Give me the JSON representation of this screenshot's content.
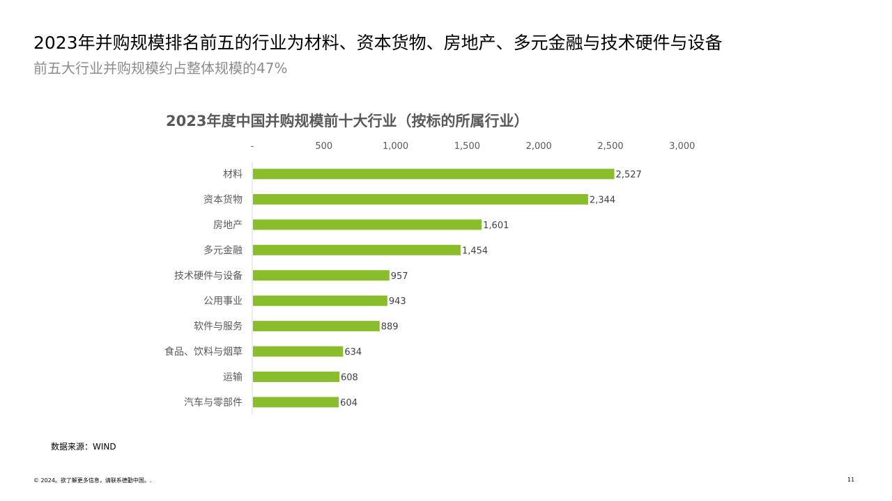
{
  "slide": {
    "headline": "2023年并购规模排名前五的行业为材料、资本货物、房地产、多元金融与技术硬件与设备",
    "subheadline": "前五大行业并购规模约占整体规模的47%",
    "source": "数据来源：WIND",
    "footer": "© 2024。欲了解更多信息，请联系德勤中国。.",
    "page_number": "11"
  },
  "colors": {
    "bar": "#8abd2c",
    "axis_text": "#595959",
    "axis_line": "#d9d9d9"
  },
  "chart_data": {
    "type": "bar",
    "orientation": "horizontal",
    "title": "2023年度中国并购规模前十大行业（按标的所属行业）",
    "xlabel": "",
    "ylabel": "",
    "xlim": [
      0,
      3000
    ],
    "x_axis_position": "top",
    "grid": false,
    "legend": "none",
    "x_ticks": [
      {
        "value": 0,
        "label": "-"
      },
      {
        "value": 500,
        "label": "500"
      },
      {
        "value": 1000,
        "label": "1,000"
      },
      {
        "value": 1500,
        "label": "1,500"
      },
      {
        "value": 2000,
        "label": "2,000"
      },
      {
        "value": 2500,
        "label": "2,500"
      },
      {
        "value": 3000,
        "label": "3,000"
      }
    ],
    "categories": [
      "材料",
      "资本货物",
      "房地产",
      "多元金融",
      "技术硬件与设备",
      "公用事业",
      "软件与服务",
      "食品、饮料与烟草",
      "运输",
      "汽车与零部件"
    ],
    "values": [
      2527,
      2344,
      1601,
      1454,
      957,
      943,
      889,
      634,
      608,
      604
    ],
    "value_labels": [
      "2,527",
      "2,344",
      "1,601",
      "1,454",
      "957",
      "943",
      "889",
      "634",
      "608",
      "604"
    ]
  }
}
